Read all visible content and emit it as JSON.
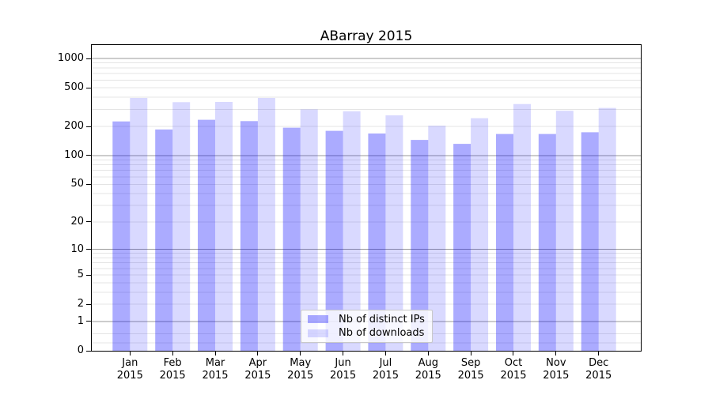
{
  "title": "ABarray 2015",
  "colors": {
    "bar_ips": "rgba(0,0,255,0.33)",
    "bar_downloads": "rgba(0,0,255,0.15)",
    "grid_major": "#9a9a9a",
    "grid_minor": "#e4e4e4",
    "axis": "#000000",
    "background": "#ffffff"
  },
  "legend": {
    "items": [
      {
        "key": "ips",
        "label": "Nb of distinct IPs"
      },
      {
        "key": "downloads",
        "label": "Nb of downloads"
      }
    ]
  },
  "chart_data": {
    "type": "bar",
    "title": "ABarray 2015",
    "categories": [
      "Jan 2015",
      "Feb 2015",
      "Mar 2015",
      "Apr 2015",
      "May 2015",
      "Jun 2015",
      "Jul 2015",
      "Aug 2015",
      "Sep 2015",
      "Oct 2015",
      "Nov 2015",
      "Dec 2015"
    ],
    "series": [
      {
        "name": "Nb of distinct IPs",
        "color_key": "bar_ips",
        "values": [
          225,
          186,
          234,
          227,
          194,
          180,
          169,
          145,
          132,
          167,
          167,
          174
        ]
      },
      {
        "name": "Nb of downloads",
        "color_key": "bar_downloads",
        "values": [
          393,
          356,
          358,
          393,
          300,
          286,
          260,
          203,
          243,
          340,
          290,
          310
        ]
      }
    ],
    "yscale": "log1p",
    "y_ticks": [
      0,
      1,
      2,
      5,
      10,
      20,
      50,
      100,
      200,
      500,
      1000
    ],
    "y_minor_gridlines": [
      0.2,
      0.5,
      2,
      3,
      4,
      5,
      6,
      7,
      8,
      9,
      20,
      30,
      40,
      50,
      60,
      70,
      80,
      90,
      200,
      300,
      400,
      500,
      600,
      700,
      800,
      900
    ],
    "y_major_gridlines": [
      1,
      10,
      100,
      1000
    ],
    "ylim": [
      0,
      1374
    ],
    "grid": "both",
    "legend_position": "lower-center-inside",
    "xlabel": "",
    "ylabel": ""
  }
}
